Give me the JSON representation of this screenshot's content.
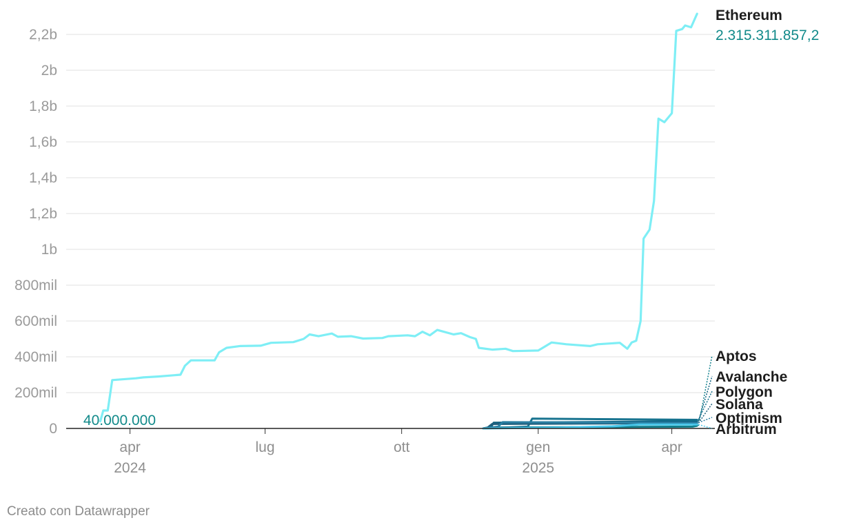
{
  "chart_data": {
    "type": "line",
    "x_axis": {
      "type": "date",
      "range": [
        "2024-02-18",
        "2025-04-30"
      ],
      "ticks": [
        {
          "date": "2024-04-01",
          "label": "apr",
          "sublabel": "2024"
        },
        {
          "date": "2024-07-01",
          "label": "lug",
          "sublabel": ""
        },
        {
          "date": "2024-10-01",
          "label": "ott",
          "sublabel": ""
        },
        {
          "date": "2025-01-01",
          "label": "gen",
          "sublabel": "2025"
        },
        {
          "date": "2025-04-01",
          "label": "apr",
          "sublabel": ""
        }
      ]
    },
    "y_axis": {
      "range": [
        0,
        2300000000
      ],
      "ticks": [
        {
          "value": 0,
          "label": "0"
        },
        {
          "value": 200000000,
          "label": "200mil"
        },
        {
          "value": 400000000,
          "label": "400mil"
        },
        {
          "value": 600000000,
          "label": "600mil"
        },
        {
          "value": 800000000,
          "label": "800mil"
        },
        {
          "value": 1000000000,
          "label": "1b"
        },
        {
          "value": 1200000000,
          "label": "1,2b"
        },
        {
          "value": 1400000000,
          "label": "1,4b"
        },
        {
          "value": 1600000000,
          "label": "1,6b"
        },
        {
          "value": 1800000000,
          "label": "1,8b"
        },
        {
          "value": 2000000000,
          "label": "2b"
        },
        {
          "value": 2200000000,
          "label": "2,2b"
        }
      ],
      "grid": true
    },
    "start_annotation": "40.000.000",
    "series": [
      {
        "name": "Ethereum",
        "end_label": "2.315.311.857,2",
        "color": "#7eeef5",
        "points": [
          [
            "2024-03-12",
            40000000
          ],
          [
            "2024-03-14",
            100000000
          ],
          [
            "2024-03-17",
            100000000
          ],
          [
            "2024-03-20",
            270000000
          ],
          [
            "2024-04-05",
            280000000
          ],
          [
            "2024-04-10",
            285000000
          ],
          [
            "2024-04-20",
            290000000
          ],
          [
            "2024-05-05",
            300000000
          ],
          [
            "2024-05-08",
            350000000
          ],
          [
            "2024-05-12",
            380000000
          ],
          [
            "2024-05-28",
            380000000
          ],
          [
            "2024-05-31",
            425000000
          ],
          [
            "2024-06-05",
            450000000
          ],
          [
            "2024-06-14",
            460000000
          ],
          [
            "2024-06-28",
            462000000
          ],
          [
            "2024-07-05",
            478000000
          ],
          [
            "2024-07-20",
            482000000
          ],
          [
            "2024-07-27",
            500000000
          ],
          [
            "2024-07-31",
            525000000
          ],
          [
            "2024-08-06",
            515000000
          ],
          [
            "2024-08-15",
            530000000
          ],
          [
            "2024-08-19",
            512000000
          ],
          [
            "2024-08-28",
            515000000
          ],
          [
            "2024-09-05",
            502000000
          ],
          [
            "2024-09-18",
            505000000
          ],
          [
            "2024-09-22",
            515000000
          ],
          [
            "2024-10-05",
            520000000
          ],
          [
            "2024-10-10",
            515000000
          ],
          [
            "2024-10-15",
            540000000
          ],
          [
            "2024-10-20",
            520000000
          ],
          [
            "2024-10-25",
            550000000
          ],
          [
            "2024-11-05",
            525000000
          ],
          [
            "2024-11-10",
            532000000
          ],
          [
            "2024-11-16",
            510000000
          ],
          [
            "2024-11-20",
            500000000
          ],
          [
            "2024-11-22",
            450000000
          ],
          [
            "2024-12-01",
            440000000
          ],
          [
            "2024-12-10",
            445000000
          ],
          [
            "2024-12-15",
            432000000
          ],
          [
            "2025-01-01",
            435000000
          ],
          [
            "2025-01-05",
            455000000
          ],
          [
            "2025-01-10",
            480000000
          ],
          [
            "2025-01-20",
            470000000
          ],
          [
            "2025-02-05",
            460000000
          ],
          [
            "2025-02-10",
            470000000
          ],
          [
            "2025-02-25",
            478000000
          ],
          [
            "2025-03-02",
            445000000
          ],
          [
            "2025-03-05",
            480000000
          ],
          [
            "2025-03-08",
            490000000
          ],
          [
            "2025-03-11",
            600000000
          ],
          [
            "2025-03-13",
            1060000000
          ],
          [
            "2025-03-17",
            1110000000
          ],
          [
            "2025-03-20",
            1270000000
          ],
          [
            "2025-03-23",
            1730000000
          ],
          [
            "2025-03-27",
            1710000000
          ],
          [
            "2025-04-01",
            1760000000
          ],
          [
            "2025-04-04",
            2220000000
          ],
          [
            "2025-04-08",
            2230000000
          ],
          [
            "2025-04-10",
            2250000000
          ],
          [
            "2025-04-14",
            2240000000
          ],
          [
            "2025-04-18",
            2315311857.2
          ]
        ]
      },
      {
        "name": "Aptos",
        "color": "#0f7f8c",
        "points": [
          [
            "2024-11-25",
            0
          ],
          [
            "2024-11-28",
            5000000
          ],
          [
            "2025-04-15",
            10000000
          ],
          [
            "2025-04-18",
            15000000
          ]
        ]
      },
      {
        "name": "Avalanche",
        "color": "#0b5f7e",
        "points": [
          [
            "2024-11-25",
            0
          ],
          [
            "2024-11-30",
            5000000
          ],
          [
            "2024-12-02",
            32000000
          ],
          [
            "2025-04-18",
            40000000
          ]
        ]
      },
      {
        "name": "Polygon",
        "color": "#17738f",
        "points": [
          [
            "2024-11-25",
            0
          ],
          [
            "2024-12-25",
            10000000
          ],
          [
            "2024-12-28",
            55000000
          ],
          [
            "2025-02-10",
            52000000
          ],
          [
            "2025-04-18",
            48000000
          ]
        ]
      },
      {
        "name": "Solana",
        "color": "#1f5f7d",
        "points": [
          [
            "2024-11-25",
            0
          ],
          [
            "2024-11-28",
            5000000
          ],
          [
            "2024-12-01",
            25000000
          ],
          [
            "2025-04-18",
            30000000
          ]
        ]
      },
      {
        "name": "Optimism",
        "color": "#2a7fa2",
        "points": [
          [
            "2024-11-25",
            0
          ],
          [
            "2024-12-05",
            10000000
          ],
          [
            "2024-12-08",
            35000000
          ],
          [
            "2025-04-18",
            32000000
          ]
        ]
      },
      {
        "name": "Arbitrum",
        "color": "#47c6ea",
        "points": [
          [
            "2024-11-25",
            0
          ],
          [
            "2025-01-15",
            5000000
          ],
          [
            "2025-02-20",
            12000000
          ],
          [
            "2025-03-10",
            22000000
          ],
          [
            "2025-04-18",
            22000000
          ]
        ]
      }
    ]
  },
  "footer": {
    "credit": "Creato con Datawrapper"
  }
}
